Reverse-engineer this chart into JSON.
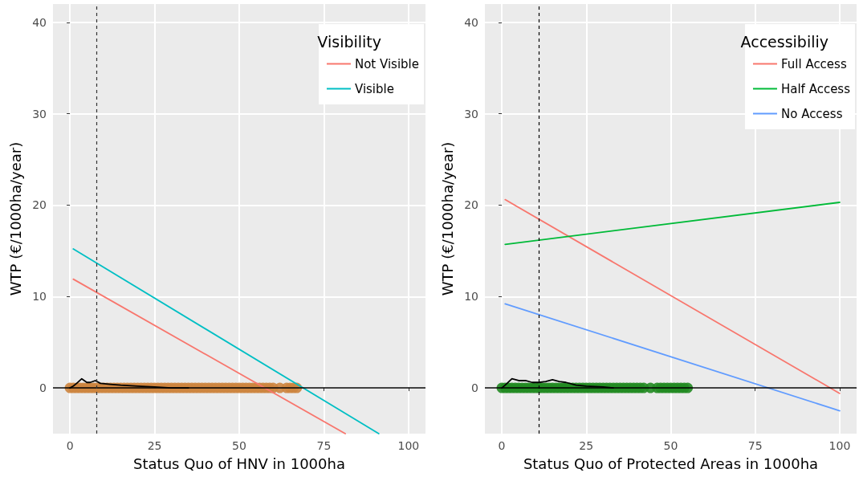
{
  "chart_data": [
    {
      "type": "line",
      "xlabel": "Status Quo of HNV in 1000ha",
      "ylabel": "WTP (€/1000ha/year)",
      "legend_title": "Visibility",
      "xlim": [
        -5,
        105
      ],
      "xticks": [
        0,
        25,
        50,
        75,
        100
      ],
      "ylim": [
        -5,
        42
      ],
      "yticks": [
        0,
        10,
        20,
        30,
        40
      ],
      "grid": true,
      "legend": "top right",
      "marker": "none",
      "line_style": "solid",
      "ref_lines": [
        {
          "axis": "y",
          "value": 0,
          "color": "#000000",
          "line_style": "solid"
        },
        {
          "axis": "x",
          "value": 7.8,
          "color": "#333333",
          "line_style": "dashed"
        }
      ],
      "series": [
        {
          "type": "scatter",
          "marker": "circle",
          "color": "#cd853f",
          "x": [
            0,
            1,
            2,
            3,
            4,
            5,
            6,
            7,
            8,
            9,
            10,
            11,
            12,
            13,
            14,
            15,
            16,
            17,
            18,
            19,
            20,
            21,
            22,
            23,
            24,
            25,
            26,
            27,
            28,
            29,
            30,
            31,
            32,
            33,
            34,
            35,
            36,
            37,
            38,
            39,
            40,
            41,
            42,
            43,
            44,
            45,
            46,
            47,
            48,
            49,
            50,
            51,
            52,
            53,
            54,
            55,
            56,
            57,
            58,
            59,
            60,
            62,
            64,
            65,
            66,
            67
          ],
          "values": [
            0,
            0,
            0,
            0,
            0,
            0,
            0,
            0,
            0,
            0,
            0,
            0,
            0,
            0,
            0,
            0,
            0,
            0,
            0,
            0,
            0,
            0,
            0,
            0,
            0,
            0,
            0,
            0,
            0,
            0,
            0,
            0,
            0,
            0,
            0,
            0,
            0,
            0,
            0,
            0,
            0,
            0,
            0,
            0,
            0,
            0,
            0,
            0,
            0,
            0,
            0,
            0,
            0,
            0,
            0,
            0,
            0,
            0,
            0,
            0,
            0,
            0,
            0,
            0,
            0,
            0
          ]
        },
        {
          "type": "line",
          "color": "#000000",
          "x": [
            0,
            1,
            2,
            3.5,
            5,
            6,
            7.5,
            9,
            12,
            15,
            20,
            25,
            30,
            35
          ],
          "values": [
            0,
            0.2,
            0.5,
            1,
            0.6,
            0.6,
            0.8,
            0.5,
            0.4,
            0.3,
            0.2,
            0.1,
            0,
            0
          ]
        },
        {
          "name": "Not Visible",
          "color": "#f8766d",
          "x": [
            1,
            81.3
          ],
          "values": [
            11.9,
            -5
          ]
        },
        {
          "name": "Visible",
          "color": "#00bfc4",
          "x": [
            1,
            91.2
          ],
          "values": [
            15.2,
            -5
          ]
        }
      ]
    },
    {
      "type": "line",
      "xlabel": "Status Quo of Protected Areas in 1000ha",
      "ylabel": "WTP (€/1000ha/year)",
      "legend_title": "Accessibiliy",
      "xlim": [
        -5,
        105
      ],
      "xticks": [
        0,
        25,
        50,
        75,
        100
      ],
      "ylim": [
        -5,
        42
      ],
      "yticks": [
        0,
        10,
        20,
        30,
        40
      ],
      "grid": true,
      "legend": "top right",
      "marker": "none",
      "line_style": "solid",
      "ref_lines": [
        {
          "axis": "y",
          "value": 0,
          "color": "#000000",
          "line_style": "solid"
        },
        {
          "axis": "x",
          "value": 10.9,
          "color": "#000000",
          "line_style": "dashed"
        }
      ],
      "series": [
        {
          "type": "scatter",
          "marker": "circle",
          "color": "#228b22",
          "x": [
            0,
            1,
            2,
            3,
            4,
            5,
            6,
            7,
            8,
            9,
            10,
            11,
            12,
            13,
            14,
            15,
            16,
            17,
            18,
            19,
            20,
            21,
            22,
            23,
            24,
            25,
            26,
            27,
            28,
            29,
            30,
            31,
            32,
            33,
            34,
            35,
            36,
            37,
            38,
            39,
            40,
            41,
            42,
            44,
            46,
            47,
            48,
            49,
            50,
            51,
            52,
            53,
            54,
            55
          ],
          "values": [
            0,
            0,
            0,
            0,
            0,
            0,
            0,
            0,
            0,
            0,
            0,
            0,
            0,
            0,
            0,
            0,
            0,
            0,
            0,
            0,
            0,
            0,
            0,
            0,
            0,
            0,
            0,
            0,
            0,
            0,
            0,
            0,
            0,
            0,
            0,
            0,
            0,
            0,
            0,
            0,
            0,
            0,
            0,
            0,
            0,
            0,
            0,
            0,
            0,
            0,
            0,
            0,
            0,
            0
          ]
        },
        {
          "type": "line",
          "color": "#000000",
          "x": [
            0,
            1,
            3,
            5,
            7,
            9,
            11,
            13,
            15,
            17,
            19,
            22,
            25,
            30,
            33
          ],
          "values": [
            0,
            0.3,
            1,
            0.8,
            0.8,
            0.6,
            0.6,
            0.7,
            0.9,
            0.7,
            0.6,
            0.3,
            0.2,
            0.1,
            0
          ]
        },
        {
          "name": "Full Access",
          "color": "#f8766d",
          "x": [
            1,
            100
          ],
          "values": [
            20.6,
            -0.6
          ]
        },
        {
          "name": "Half Access",
          "color": "#00ba38",
          "x": [
            1,
            100
          ],
          "values": [
            15.7,
            20.3
          ]
        },
        {
          "name": "No Access",
          "color": "#619cff",
          "x": [
            1,
            100
          ],
          "values": [
            9.2,
            -2.5
          ]
        }
      ]
    }
  ]
}
